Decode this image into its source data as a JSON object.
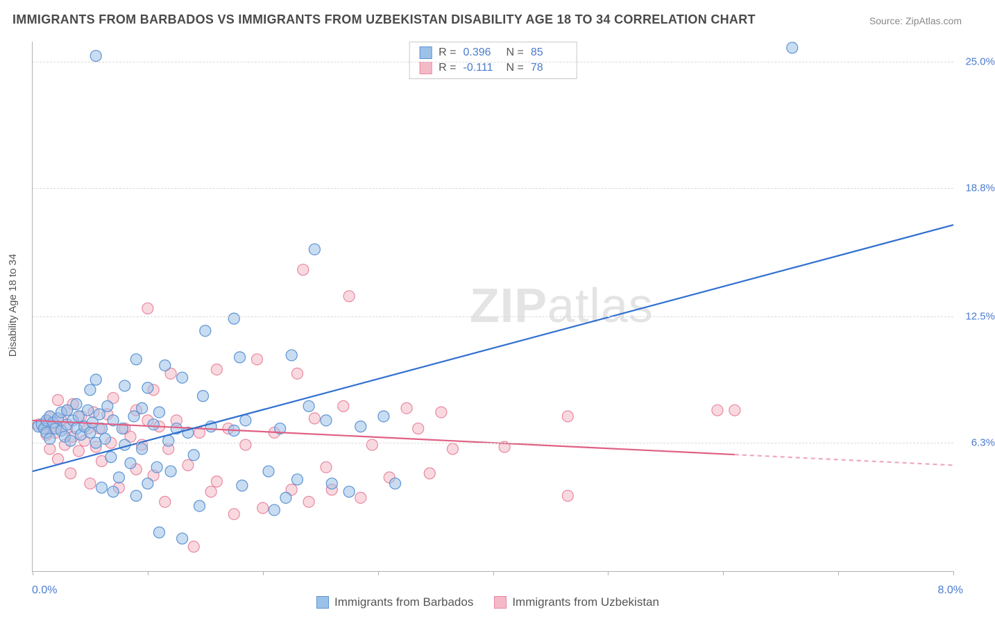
{
  "title": "IMMIGRANTS FROM BARBADOS VS IMMIGRANTS FROM UZBEKISTAN DISABILITY AGE 18 TO 34 CORRELATION CHART",
  "source": "Source: ZipAtlas.com",
  "y_axis_label": "Disability Age 18 to 34",
  "x_axis": {
    "min": 0.0,
    "max": 8.0,
    "label_min": "0.0%",
    "label_max": "8.0%",
    "ticks": [
      0,
      1,
      2,
      3,
      4,
      5,
      6,
      7,
      8
    ]
  },
  "y_axis": {
    "min": 0.0,
    "max": 26.0,
    "gridlines": [
      {
        "value": 6.3,
        "label": "6.3%"
      },
      {
        "value": 12.5,
        "label": "12.5%"
      },
      {
        "value": 18.8,
        "label": "18.8%"
      },
      {
        "value": 25.0,
        "label": "25.0%"
      }
    ]
  },
  "watermark": {
    "prefix": "ZIP",
    "suffix": "atlas"
  },
  "stats": [
    {
      "series": "barbados",
      "r_label": "R =",
      "r": "0.396",
      "n_label": "N =",
      "n": "85"
    },
    {
      "series": "uzbekistan",
      "r_label": "R =",
      "r": "-0.111",
      "n_label": "N =",
      "n": "78"
    }
  ],
  "legend": [
    {
      "key": "barbados",
      "label": "Immigrants from Barbados"
    },
    {
      "key": "uzbekistan",
      "label": "Immigrants from Uzbekistan"
    }
  ],
  "series": {
    "barbados": {
      "fill": "#9cc1e8",
      "stroke": "#5b93d4",
      "line_color": "#2f6fd0",
      "line_width": 2.2,
      "marker_radius": 8,
      "marker_opacity": 0.55,
      "trend": {
        "x1": 0.0,
        "y1": 4.9,
        "x2": 8.0,
        "y2": 17.0,
        "solid_until_x": 8.0
      },
      "points": [
        [
          0.05,
          7.1
        ],
        [
          0.08,
          7.2
        ],
        [
          0.1,
          7.0
        ],
        [
          0.12,
          7.4
        ],
        [
          0.12,
          6.8
        ],
        [
          0.15,
          7.6
        ],
        [
          0.15,
          6.5
        ],
        [
          0.18,
          7.3
        ],
        [
          0.2,
          7.0
        ],
        [
          0.22,
          7.5
        ],
        [
          0.25,
          6.9
        ],
        [
          0.25,
          7.8
        ],
        [
          0.28,
          6.6
        ],
        [
          0.3,
          7.2
        ],
        [
          0.3,
          7.9
        ],
        [
          0.33,
          6.4
        ],
        [
          0.35,
          7.4
        ],
        [
          0.38,
          7.0
        ],
        [
          0.38,
          8.2
        ],
        [
          0.4,
          7.6
        ],
        [
          0.42,
          6.7
        ],
        [
          0.45,
          7.1
        ],
        [
          0.48,
          7.9
        ],
        [
          0.5,
          6.8
        ],
        [
          0.5,
          8.9
        ],
        [
          0.52,
          7.3
        ],
        [
          0.55,
          6.3
        ],
        [
          0.55,
          9.4
        ],
        [
          0.58,
          7.7
        ],
        [
          0.6,
          4.1
        ],
        [
          0.6,
          7.0
        ],
        [
          0.63,
          6.5
        ],
        [
          0.65,
          8.1
        ],
        [
          0.68,
          5.6
        ],
        [
          0.7,
          7.4
        ],
        [
          0.7,
          3.9
        ],
        [
          0.75,
          4.6
        ],
        [
          0.78,
          7.0
        ],
        [
          0.8,
          6.2
        ],
        [
          0.8,
          9.1
        ],
        [
          0.85,
          5.3
        ],
        [
          0.88,
          7.6
        ],
        [
          0.9,
          3.7
        ],
        [
          0.9,
          10.4
        ],
        [
          0.95,
          6.0
        ],
        [
          0.95,
          8.0
        ],
        [
          1.0,
          4.3
        ],
        [
          1.0,
          9.0
        ],
        [
          1.05,
          7.2
        ],
        [
          1.08,
          5.1
        ],
        [
          1.1,
          1.9
        ],
        [
          1.1,
          7.8
        ],
        [
          1.15,
          10.1
        ],
        [
          1.18,
          6.4
        ],
        [
          1.2,
          4.9
        ],
        [
          1.25,
          7.0
        ],
        [
          1.3,
          1.6
        ],
        [
          1.3,
          9.5
        ],
        [
          1.35,
          6.8
        ],
        [
          1.4,
          5.7
        ],
        [
          1.45,
          3.2
        ],
        [
          1.48,
          8.6
        ],
        [
          1.5,
          11.8
        ],
        [
          1.55,
          7.1
        ],
        [
          1.75,
          6.9
        ],
        [
          1.75,
          12.4
        ],
        [
          1.8,
          10.5
        ],
        [
          1.82,
          4.2
        ],
        [
          1.85,
          7.4
        ],
        [
          2.05,
          4.9
        ],
        [
          2.1,
          3.0
        ],
        [
          2.15,
          7.0
        ],
        [
          2.2,
          3.6
        ],
        [
          2.25,
          10.6
        ],
        [
          2.3,
          4.5
        ],
        [
          2.4,
          8.1
        ],
        [
          2.45,
          15.8
        ],
        [
          2.55,
          7.4
        ],
        [
          2.6,
          4.3
        ],
        [
          2.75,
          3.9
        ],
        [
          2.85,
          7.1
        ],
        [
          3.05,
          7.6
        ],
        [
          3.15,
          4.3
        ],
        [
          0.55,
          25.3
        ],
        [
          6.6,
          25.7
        ]
      ]
    },
    "uzbekistan": {
      "fill": "#f4b9c7",
      "stroke": "#e887a0",
      "line_color": "#e06084",
      "line_width": 2.2,
      "marker_radius": 8,
      "marker_opacity": 0.55,
      "trend": {
        "x1": 0.0,
        "y1": 7.4,
        "x2": 8.0,
        "y2": 5.2,
        "solid_until_x": 6.1
      },
      "points": [
        [
          0.05,
          7.2
        ],
        [
          0.1,
          7.0
        ],
        [
          0.12,
          7.3
        ],
        [
          0.12,
          6.7
        ],
        [
          0.15,
          7.6
        ],
        [
          0.15,
          6.0
        ],
        [
          0.18,
          7.1
        ],
        [
          0.2,
          6.8
        ],
        [
          0.22,
          8.4
        ],
        [
          0.22,
          5.5
        ],
        [
          0.25,
          7.4
        ],
        [
          0.28,
          6.2
        ],
        [
          0.3,
          7.0
        ],
        [
          0.3,
          7.9
        ],
        [
          0.33,
          4.8
        ],
        [
          0.35,
          6.6
        ],
        [
          0.35,
          8.2
        ],
        [
          0.4,
          5.9
        ],
        [
          0.42,
          7.6
        ],
        [
          0.45,
          6.4
        ],
        [
          0.48,
          7.0
        ],
        [
          0.5,
          4.3
        ],
        [
          0.53,
          7.8
        ],
        [
          0.55,
          6.1
        ],
        [
          0.58,
          7.0
        ],
        [
          0.6,
          5.4
        ],
        [
          0.65,
          7.7
        ],
        [
          0.68,
          6.3
        ],
        [
          0.7,
          8.5
        ],
        [
          0.75,
          4.1
        ],
        [
          0.8,
          7.0
        ],
        [
          0.85,
          6.6
        ],
        [
          0.9,
          5.0
        ],
        [
          0.9,
          7.9
        ],
        [
          0.95,
          6.2
        ],
        [
          1.0,
          7.4
        ],
        [
          1.0,
          12.9
        ],
        [
          1.05,
          4.7
        ],
        [
          1.05,
          8.9
        ],
        [
          1.1,
          7.1
        ],
        [
          1.15,
          3.4
        ],
        [
          1.18,
          6.0
        ],
        [
          1.2,
          9.7
        ],
        [
          1.25,
          7.4
        ],
        [
          1.35,
          5.2
        ],
        [
          1.4,
          1.2
        ],
        [
          1.45,
          6.8
        ],
        [
          1.55,
          3.9
        ],
        [
          1.6,
          9.9
        ],
        [
          1.6,
          4.4
        ],
        [
          1.7,
          7.0
        ],
        [
          1.75,
          2.8
        ],
        [
          1.85,
          6.2
        ],
        [
          1.95,
          10.4
        ],
        [
          2.0,
          3.1
        ],
        [
          2.1,
          6.8
        ],
        [
          2.25,
          4.0
        ],
        [
          2.3,
          9.7
        ],
        [
          2.35,
          14.8
        ],
        [
          2.4,
          3.4
        ],
        [
          2.45,
          7.5
        ],
        [
          2.55,
          5.1
        ],
        [
          2.6,
          4.0
        ],
        [
          2.7,
          8.1
        ],
        [
          2.75,
          13.5
        ],
        [
          2.85,
          3.6
        ],
        [
          2.95,
          6.2
        ],
        [
          3.1,
          4.6
        ],
        [
          3.25,
          8.0
        ],
        [
          3.35,
          7.0
        ],
        [
          3.45,
          4.8
        ],
        [
          3.55,
          7.8
        ],
        [
          3.65,
          6.0
        ],
        [
          4.1,
          6.1
        ],
        [
          4.65,
          3.7
        ],
        [
          4.65,
          7.6
        ],
        [
          5.95,
          7.9
        ],
        [
          6.1,
          7.9
        ]
      ]
    }
  },
  "colors": {
    "axis_value": "#4a7bd0",
    "grid": "#d8d8d8",
    "text": "#555555"
  }
}
